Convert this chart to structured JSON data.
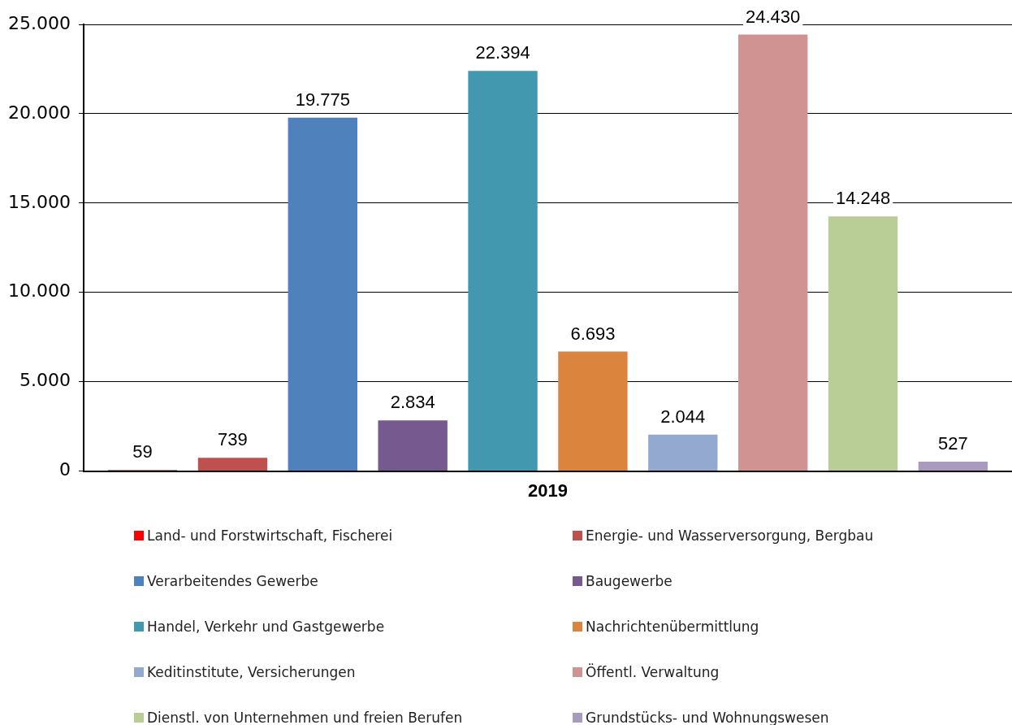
{
  "chart_data": {
    "type": "bar",
    "categories": [
      "2019"
    ],
    "series": [
      {
        "name": "Land- und Forstwirtschaft, Fischerei",
        "color": "#ff0000",
        "values": [
          59
        ],
        "value_labels": [
          "59"
        ]
      },
      {
        "name": "Energie- und Wasserversorgung, Bergbau",
        "color": "#c0504d",
        "values": [
          739
        ],
        "value_labels": [
          "739"
        ]
      },
      {
        "name": "Verarbeitendes Gewerbe",
        "color": "#4f81bd",
        "values": [
          19775
        ],
        "value_labels": [
          "19.775"
        ]
      },
      {
        "name": "Baugewerbe",
        "color": "#75598f",
        "values": [
          2834
        ],
        "value_labels": [
          "2.834"
        ]
      },
      {
        "name": "Handel, Verkehr und Gastgewerbe",
        "color": "#4198af",
        "values": [
          22394
        ],
        "value_labels": [
          "22.394"
        ]
      },
      {
        "name": "Nachrichtenübermittlung",
        "color": "#db843d",
        "values": [
          6693
        ],
        "value_labels": [
          "6.693"
        ]
      },
      {
        "name": "Keditinstitute, Versicherungen",
        "color": "#93a9cf",
        "values": [
          2044
        ],
        "value_labels": [
          "2.044"
        ]
      },
      {
        "name": "Öffentl. Verwaltung",
        "color": "#d19392",
        "values": [
          24430
        ],
        "value_labels": [
          "24.430"
        ]
      },
      {
        "name": "Dienstl. von Unternehmen und freien Berufen",
        "color": "#b9cd96",
        "values": [
          14248
        ],
        "value_labels": [
          "14.248"
        ]
      },
      {
        "name": "Grundstücks- und Wohnungswesen",
        "color": "#a99bbd",
        "values": [
          527
        ],
        "value_labels": [
          "527"
        ]
      }
    ],
    "ylim": [
      0,
      25000
    ],
    "yticks": [
      {
        "value": 0,
        "label": "0"
      },
      {
        "value": 5000,
        "label": "5.000"
      },
      {
        "value": 10000,
        "label": "10.000"
      },
      {
        "value": 15000,
        "label": "15.000"
      },
      {
        "value": 20000,
        "label": "20.000"
      },
      {
        "value": 25000,
        "label": "25.000"
      }
    ],
    "grid": "y",
    "legend": "bottom"
  }
}
